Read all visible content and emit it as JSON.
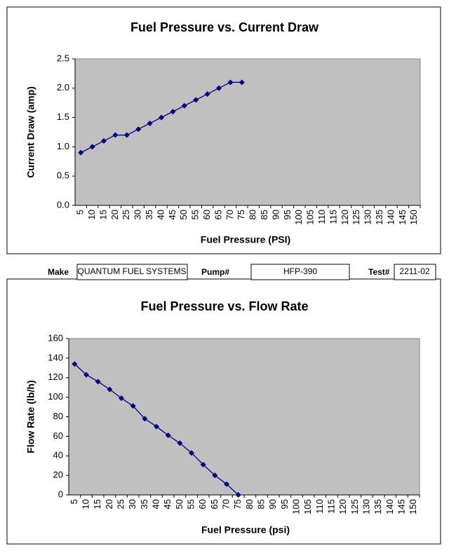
{
  "chart_data": [
    {
      "type": "line",
      "title": "Fuel Pressure vs. Current Draw",
      "x_label": "Fuel Pressure (PSI)",
      "y_label": "Current Draw (amp)",
      "categories": [
        "5",
        "10",
        "15",
        "20",
        "25",
        "30",
        "35",
        "40",
        "45",
        "50",
        "55",
        "60",
        "65",
        "70",
        "75",
        "80",
        "85",
        "90",
        "95",
        "100",
        "105",
        "110",
        "115",
        "120",
        "125",
        "130",
        "135",
        "140",
        "145",
        "150"
      ],
      "series": [
        {
          "color": "#000080",
          "values": [
            0.9,
            1.0,
            1.1,
            1.2,
            1.2,
            1.3,
            1.4,
            1.5,
            1.6,
            1.7,
            1.8,
            1.9,
            2.0,
            2.1,
            2.1,
            null,
            null,
            null,
            null,
            null,
            null,
            null,
            null,
            null,
            null,
            null,
            null,
            null,
            null,
            null
          ]
        }
      ],
      "ylim": [
        0,
        2.5
      ],
      "yticks": [
        {
          "value": 0,
          "label": "0.0"
        },
        0.5,
        {
          "value": 1,
          "label": "1.0"
        },
        1.5,
        {
          "value": 2,
          "label": "2.0"
        },
        2.5
      ],
      "grid": false
    },
    {
      "type": "line",
      "title": "Fuel Pressure vs. Flow Rate",
      "x_label": "Fuel Pressure (psi)",
      "y_label": "Flow Rate (lb/h)",
      "categories": [
        "5",
        "10",
        "15",
        "20",
        "25",
        "30",
        "35",
        "40",
        "45",
        "50",
        "55",
        "60",
        "65",
        "70",
        "75",
        "80",
        "85",
        "90",
        "95",
        "100",
        "105",
        "110",
        "115",
        "120",
        "125",
        "130",
        "135",
        "140",
        "145",
        "150"
      ],
      "series": [
        {
          "color": "#000080",
          "values": [
            134,
            123,
            116,
            108,
            99,
            91,
            78,
            70,
            61,
            53,
            43,
            31,
            20,
            11,
            0,
            null,
            null,
            null,
            null,
            null,
            null,
            null,
            null,
            null,
            null,
            null,
            null,
            null,
            null,
            null
          ]
        }
      ],
      "ylim": [
        0,
        160
      ],
      "yticks": [
        0,
        20,
        40,
        60,
        80,
        100,
        120,
        140,
        160
      ],
      "grid": false
    }
  ],
  "info": {
    "make_label": "Make",
    "make": "QUANTUM FUEL SYSTEMS",
    "pump_label": "Pump#",
    "pump": "HFP-390",
    "test_label": "Test#",
    "test": "2211-02"
  }
}
